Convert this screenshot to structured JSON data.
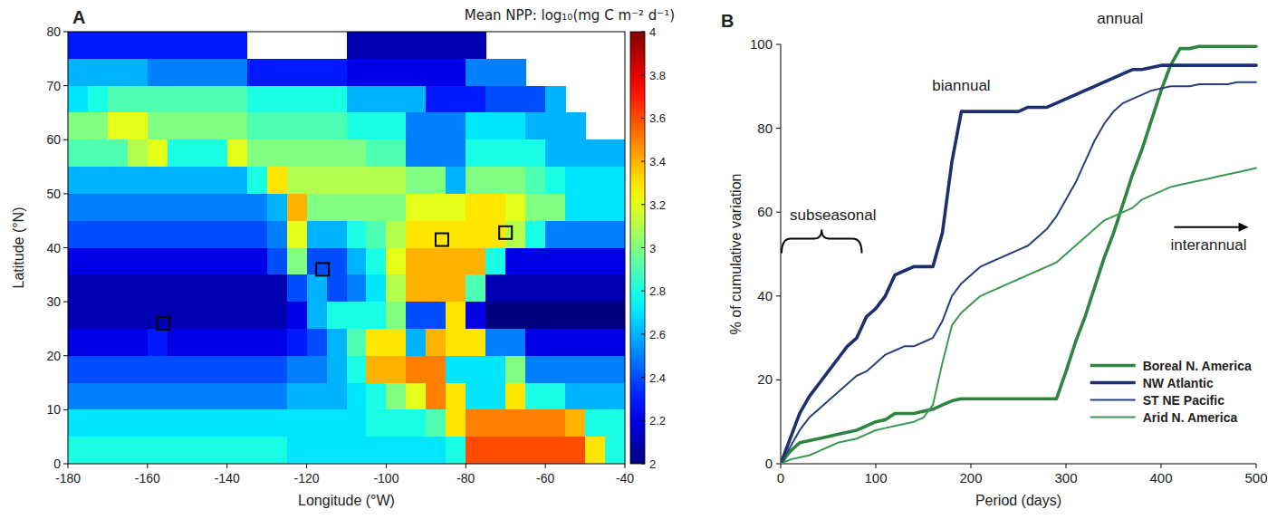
{
  "chart_data": [
    {
      "type": "heatmap",
      "panel": "A",
      "title": "Mean NPP: log₁₀(mg C m⁻² d⁻¹)",
      "x_label": "Longitude (°W)",
      "y_label": "Latitude (°N)",
      "xlim": [
        -180,
        -40
      ],
      "ylim": [
        0,
        80
      ],
      "xticks": [
        -180,
        -160,
        -140,
        -120,
        -100,
        -80,
        -60,
        -40
      ],
      "yticks": [
        0,
        10,
        20,
        30,
        40,
        50,
        60,
        70,
        80
      ],
      "x": [
        -177.5,
        -172.5,
        -167.5,
        -162.5,
        -157.5,
        -152.5,
        -147.5,
        -142.5,
        -137.5,
        -132.5,
        -127.5,
        -122.5,
        -117.5,
        -112.5,
        -107.5,
        -102.5,
        -97.5,
        -92.5,
        -87.5,
        -82.5,
        -77.5,
        -72.5,
        -67.5,
        -62.5,
        -57.5,
        -52.5,
        -47.5,
        -42.5
      ],
      "y": [
        77.5,
        72.5,
        67.5,
        62.5,
        57.5,
        52.5,
        47.5,
        42.5,
        37.5,
        32.5,
        27.5,
        22.5,
        17.5,
        12.5,
        7.5,
        2.5
      ],
      "cells": [
        [
          2.3,
          2.3,
          2.3,
          2.3,
          2.3,
          2.3,
          2.3,
          2.3,
          2.3,
          null,
          null,
          null,
          null,
          null,
          2.1,
          2.1,
          2.1,
          2.1,
          2.1,
          2.1,
          2.1,
          null,
          null,
          null,
          null,
          null,
          null,
          null
        ],
        [
          2.6,
          2.6,
          2.6,
          2.6,
          2.5,
          2.5,
          2.5,
          2.5,
          2.5,
          2.3,
          2.3,
          2.3,
          2.3,
          2.3,
          2.2,
          2.2,
          2.2,
          2.2,
          2.2,
          2.2,
          2.5,
          2.5,
          2.5,
          null,
          null,
          null,
          null,
          null
        ],
        [
          2.7,
          2.8,
          2.9,
          2.9,
          2.9,
          2.9,
          2.9,
          2.9,
          2.9,
          2.8,
          2.8,
          2.8,
          2.8,
          2.8,
          2.6,
          2.6,
          2.6,
          2.6,
          2.3,
          2.3,
          2.3,
          2.4,
          2.4,
          2.4,
          2.6,
          null,
          null,
          null
        ],
        [
          3.0,
          3.0,
          3.2,
          3.2,
          3.0,
          3.0,
          3.0,
          3.0,
          3.0,
          2.9,
          2.9,
          2.9,
          2.9,
          2.9,
          2.8,
          2.8,
          2.8,
          2.5,
          2.5,
          2.5,
          2.7,
          2.7,
          2.7,
          2.6,
          2.6,
          2.6,
          null,
          null
        ],
        [
          2.9,
          2.9,
          2.9,
          3.1,
          3.2,
          2.8,
          2.8,
          2.8,
          3.2,
          3.0,
          3.0,
          3.0,
          3.0,
          3.0,
          3.0,
          2.9,
          2.9,
          2.5,
          2.5,
          2.5,
          2.8,
          2.8,
          2.8,
          2.8,
          2.6,
          2.6,
          2.6,
          2.6
        ],
        [
          2.6,
          2.6,
          2.6,
          2.6,
          2.6,
          2.6,
          2.6,
          2.6,
          2.6,
          2.8,
          3.3,
          3.1,
          3.1,
          3.1,
          3.1,
          3.1,
          3.1,
          3.0,
          3.0,
          2.6,
          3.0,
          3.0,
          3.0,
          2.9,
          2.8,
          2.7,
          2.7,
          2.7
        ],
        [
          2.5,
          2.5,
          2.5,
          2.5,
          2.5,
          2.5,
          2.5,
          2.5,
          2.5,
          2.5,
          2.6,
          3.4,
          3.0,
          3.0,
          3.0,
          3.0,
          3.0,
          3.2,
          3.2,
          3.2,
          3.3,
          3.3,
          3.2,
          3.0,
          3.0,
          2.7,
          2.7,
          2.7
        ],
        [
          2.4,
          2.4,
          2.4,
          2.4,
          2.4,
          2.4,
          2.4,
          2.4,
          2.4,
          2.4,
          2.5,
          3.2,
          2.6,
          2.6,
          2.8,
          2.9,
          3.1,
          3.3,
          3.3,
          3.3,
          3.3,
          3.3,
          3.1,
          2.8,
          2.5,
          2.5,
          2.5,
          2.5
        ],
        [
          2.2,
          2.2,
          2.2,
          2.2,
          2.2,
          2.2,
          2.2,
          2.2,
          2.2,
          2.2,
          2.4,
          3.0,
          2.4,
          2.4,
          2.6,
          2.8,
          3.2,
          3.4,
          3.4,
          3.4,
          3.4,
          2.8,
          2.2,
          2.2,
          2.2,
          2.2,
          2.2,
          2.2
        ],
        [
          2.1,
          2.1,
          2.1,
          2.1,
          2.1,
          2.1,
          2.1,
          2.1,
          2.1,
          2.1,
          2.1,
          2.4,
          2.6,
          2.4,
          2.5,
          2.7,
          3.1,
          3.4,
          3.4,
          3.4,
          2.9,
          2.1,
          2.1,
          2.1,
          2.1,
          2.1,
          2.1,
          2.1
        ],
        [
          2.1,
          2.1,
          2.1,
          2.1,
          2.1,
          2.1,
          2.1,
          2.1,
          2.1,
          2.1,
          2.1,
          2.2,
          2.6,
          2.8,
          2.8,
          2.8,
          3.0,
          2.4,
          2.4,
          3.3,
          2.2,
          2.0,
          2.0,
          2.0,
          2.0,
          2.0,
          2.0,
          2.0
        ],
        [
          2.2,
          2.2,
          2.2,
          2.2,
          2.3,
          2.2,
          2.2,
          2.2,
          2.2,
          2.2,
          2.2,
          2.3,
          2.4,
          2.6,
          2.9,
          3.3,
          3.3,
          2.6,
          3.4,
          3.3,
          3.3,
          2.5,
          2.5,
          2.2,
          2.2,
          2.2,
          2.2,
          2.2
        ],
        [
          2.4,
          2.4,
          2.4,
          2.4,
          2.4,
          2.4,
          2.4,
          2.4,
          2.4,
          2.4,
          2.4,
          2.5,
          2.5,
          2.6,
          2.8,
          3.4,
          3.4,
          3.5,
          3.5,
          2.7,
          2.7,
          2.7,
          3.0,
          2.5,
          2.5,
          2.5,
          2.5,
          2.5
        ],
        [
          2.5,
          2.5,
          2.5,
          2.5,
          2.5,
          2.5,
          2.5,
          2.5,
          2.5,
          2.5,
          2.5,
          2.6,
          2.6,
          2.6,
          2.7,
          2.8,
          3.0,
          3.2,
          3.5,
          3.3,
          2.7,
          2.7,
          3.3,
          2.8,
          2.8,
          2.6,
          2.6,
          2.6
        ],
        [
          2.7,
          2.7,
          2.7,
          2.7,
          2.7,
          2.7,
          2.7,
          2.7,
          2.7,
          2.7,
          2.7,
          2.7,
          2.7,
          2.7,
          2.7,
          2.8,
          2.8,
          2.8,
          2.9,
          3.3,
          3.5,
          3.5,
          3.5,
          3.5,
          3.5,
          3.4,
          2.8,
          2.8
        ],
        [
          2.8,
          2.8,
          2.8,
          2.8,
          2.8,
          2.8,
          2.8,
          2.8,
          2.8,
          2.8,
          2.8,
          2.7,
          2.7,
          2.7,
          2.7,
          2.7,
          2.7,
          2.7,
          2.7,
          2.8,
          3.6,
          3.6,
          3.6,
          3.6,
          3.6,
          3.6,
          3.3,
          2.8
        ]
      ],
      "color_range": [
        2,
        4
      ],
      "color_ticks": [
        2,
        2.2,
        2.4,
        2.6,
        2.8,
        3,
        3.2,
        3.4,
        3.6,
        3.8,
        4
      ],
      "sites": {
        "x": [
          -156,
          -116,
          -86,
          -70
        ],
        "y": [
          26,
          36,
          41.5,
          42.8
        ]
      }
    },
    {
      "type": "line",
      "panel": "B",
      "x_label": "Period (days)",
      "y_label": "% of cumulative variation",
      "xlim": [
        0,
        500
      ],
      "ylim": [
        0,
        100
      ],
      "xticks": [
        0,
        100,
        200,
        300,
        400,
        500
      ],
      "yticks": [
        0,
        20,
        40,
        60,
        80,
        100
      ],
      "legend": "lower right",
      "x": [
        0,
        10,
        20,
        30,
        40,
        50,
        60,
        70,
        80,
        90,
        100,
        110,
        120,
        130,
        140,
        150,
        160,
        170,
        180,
        190,
        200,
        210,
        220,
        230,
        240,
        250,
        260,
        270,
        280,
        290,
        300,
        310,
        320,
        330,
        340,
        350,
        360,
        370,
        380,
        390,
        400,
        410,
        420,
        430,
        440,
        450,
        460,
        470,
        480,
        490,
        500
      ],
      "series": [
        {
          "name": "Boreal N. America",
          "color": "#2e8540",
          "line_style": "thick",
          "values": [
            0,
            3,
            5,
            5.5,
            6,
            6.5,
            7,
            7.5,
            8,
            9,
            10,
            10.5,
            12,
            12,
            12,
            12.5,
            13,
            14,
            15,
            15.5,
            15.5,
            15.5,
            15.5,
            15.5,
            15.5,
            15.5,
            15.5,
            15.5,
            15.5,
            15.5,
            22,
            29,
            35,
            42,
            49,
            55,
            62,
            69,
            75,
            82,
            89,
            95,
            99,
            99,
            99.5,
            99.5,
            99.5,
            99.5,
            99.5,
            99.5,
            99.5
          ]
        },
        {
          "name": "NW Atlantic",
          "color": "#1c2f6e",
          "line_style": "thick",
          "values": [
            0,
            6,
            12,
            16,
            19,
            22,
            25,
            28,
            30,
            35,
            37,
            40,
            45,
            46,
            47,
            47,
            47,
            55,
            72,
            84,
            84,
            84,
            84,
            84,
            84,
            84,
            85,
            85,
            85,
            86,
            87,
            88,
            89,
            90,
            91,
            92,
            93,
            94,
            94,
            94.5,
            95,
            95,
            95,
            95,
            95,
            95,
            95,
            95,
            95,
            95,
            95
          ]
        },
        {
          "name": "ST NE Pacific",
          "color": "#26407f",
          "line_style": "thin",
          "values": [
            0,
            4,
            8,
            11,
            13,
            15,
            17,
            19,
            21,
            22,
            24,
            26,
            27,
            28,
            28,
            29,
            30,
            34,
            40,
            43,
            45,
            47,
            48,
            49,
            50,
            51,
            52,
            54,
            56,
            59,
            63,
            67,
            72,
            77,
            81,
            84,
            86,
            87,
            88,
            89,
            89.5,
            90,
            90,
            90,
            90.5,
            90.5,
            90.5,
            90.5,
            91,
            91,
            91
          ]
        },
        {
          "name": "Arid N. America",
          "color": "#3b9a52",
          "line_style": "thin",
          "values": [
            0,
            1,
            1.5,
            2,
            3,
            4,
            5,
            5.5,
            6,
            7,
            8,
            8.5,
            9,
            9.5,
            10,
            11,
            14,
            24,
            33,
            36,
            38,
            40,
            41,
            42,
            43,
            44,
            45,
            46,
            47,
            48,
            50,
            52,
            54,
            56,
            58,
            59,
            60,
            61,
            63,
            64,
            65,
            66,
            66.5,
            67,
            67.5,
            68,
            68.5,
            69,
            69.5,
            70,
            70.5
          ]
        }
      ],
      "annotations": [
        {
          "text": "annual",
          "x": 357,
          "y": 105
        },
        {
          "text": "biannual",
          "x": 190,
          "y": 89
        },
        {
          "text": "subseasonal",
          "x": 55,
          "y": 58
        },
        {
          "text": "interannual",
          "x": 450,
          "y": 51
        }
      ]
    }
  ]
}
